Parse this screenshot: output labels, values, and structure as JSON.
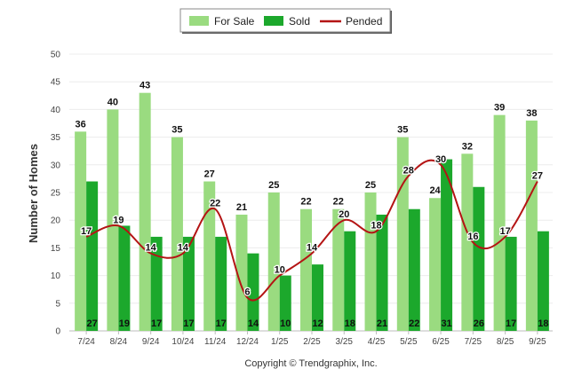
{
  "chart_data": {
    "type": "bar",
    "categories": [
      "7/24",
      "8/24",
      "9/24",
      "10/24",
      "11/24",
      "12/24",
      "1/25",
      "2/25",
      "3/25",
      "4/25",
      "5/25",
      "6/25",
      "7/25",
      "8/25",
      "9/25"
    ],
    "series": [
      {
        "name": "For Sale",
        "kind": "bar",
        "color": "#9ADB80",
        "values": [
          36,
          40,
          43,
          35,
          27,
          21,
          25,
          22,
          22,
          25,
          35,
          24,
          32,
          39,
          38
        ]
      },
      {
        "name": "Sold",
        "kind": "bar",
        "color": "#1CA82C",
        "values": [
          27,
          19,
          17,
          17,
          17,
          14,
          10,
          12,
          18,
          21,
          22,
          31,
          26,
          17,
          18
        ]
      },
      {
        "name": "Pended",
        "kind": "line",
        "color": "#B41414",
        "values": [
          17,
          19,
          14,
          14,
          22,
          6,
          10,
          14,
          20,
          18,
          28,
          30,
          16,
          17,
          27
        ]
      }
    ],
    "ylabel": "Number of Homes",
    "xlabel": "",
    "ylim": [
      0,
      50
    ],
    "yticks": [
      0,
      5,
      10,
      15,
      20,
      25,
      30,
      35,
      40,
      45,
      50
    ],
    "grid": true,
    "legend_position": "top-center"
  },
  "credit": "Copyright © Trendgraphix, Inc."
}
